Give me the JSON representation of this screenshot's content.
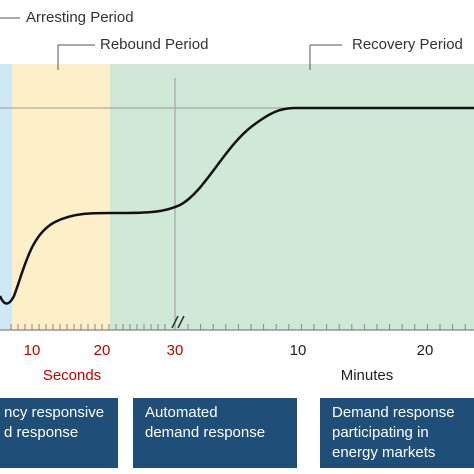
{
  "periods": {
    "arresting": "Arresting Period",
    "rebound": "Rebound Period",
    "recovery": "Recovery Period"
  },
  "axis": {
    "seconds_ticks": [
      "10",
      "20",
      "30"
    ],
    "minutes_ticks": [
      "10",
      "20"
    ],
    "seconds_label": "Seconds",
    "minutes_label": "Minutes"
  },
  "boxes": [
    {
      "lines": [
        "ncy responsive",
        "d response"
      ]
    },
    {
      "lines": [
        "Automated",
        "demand response"
      ]
    },
    {
      "lines": [
        "Demand response",
        "participating in",
        "energy markets"
      ]
    }
  ]
}
